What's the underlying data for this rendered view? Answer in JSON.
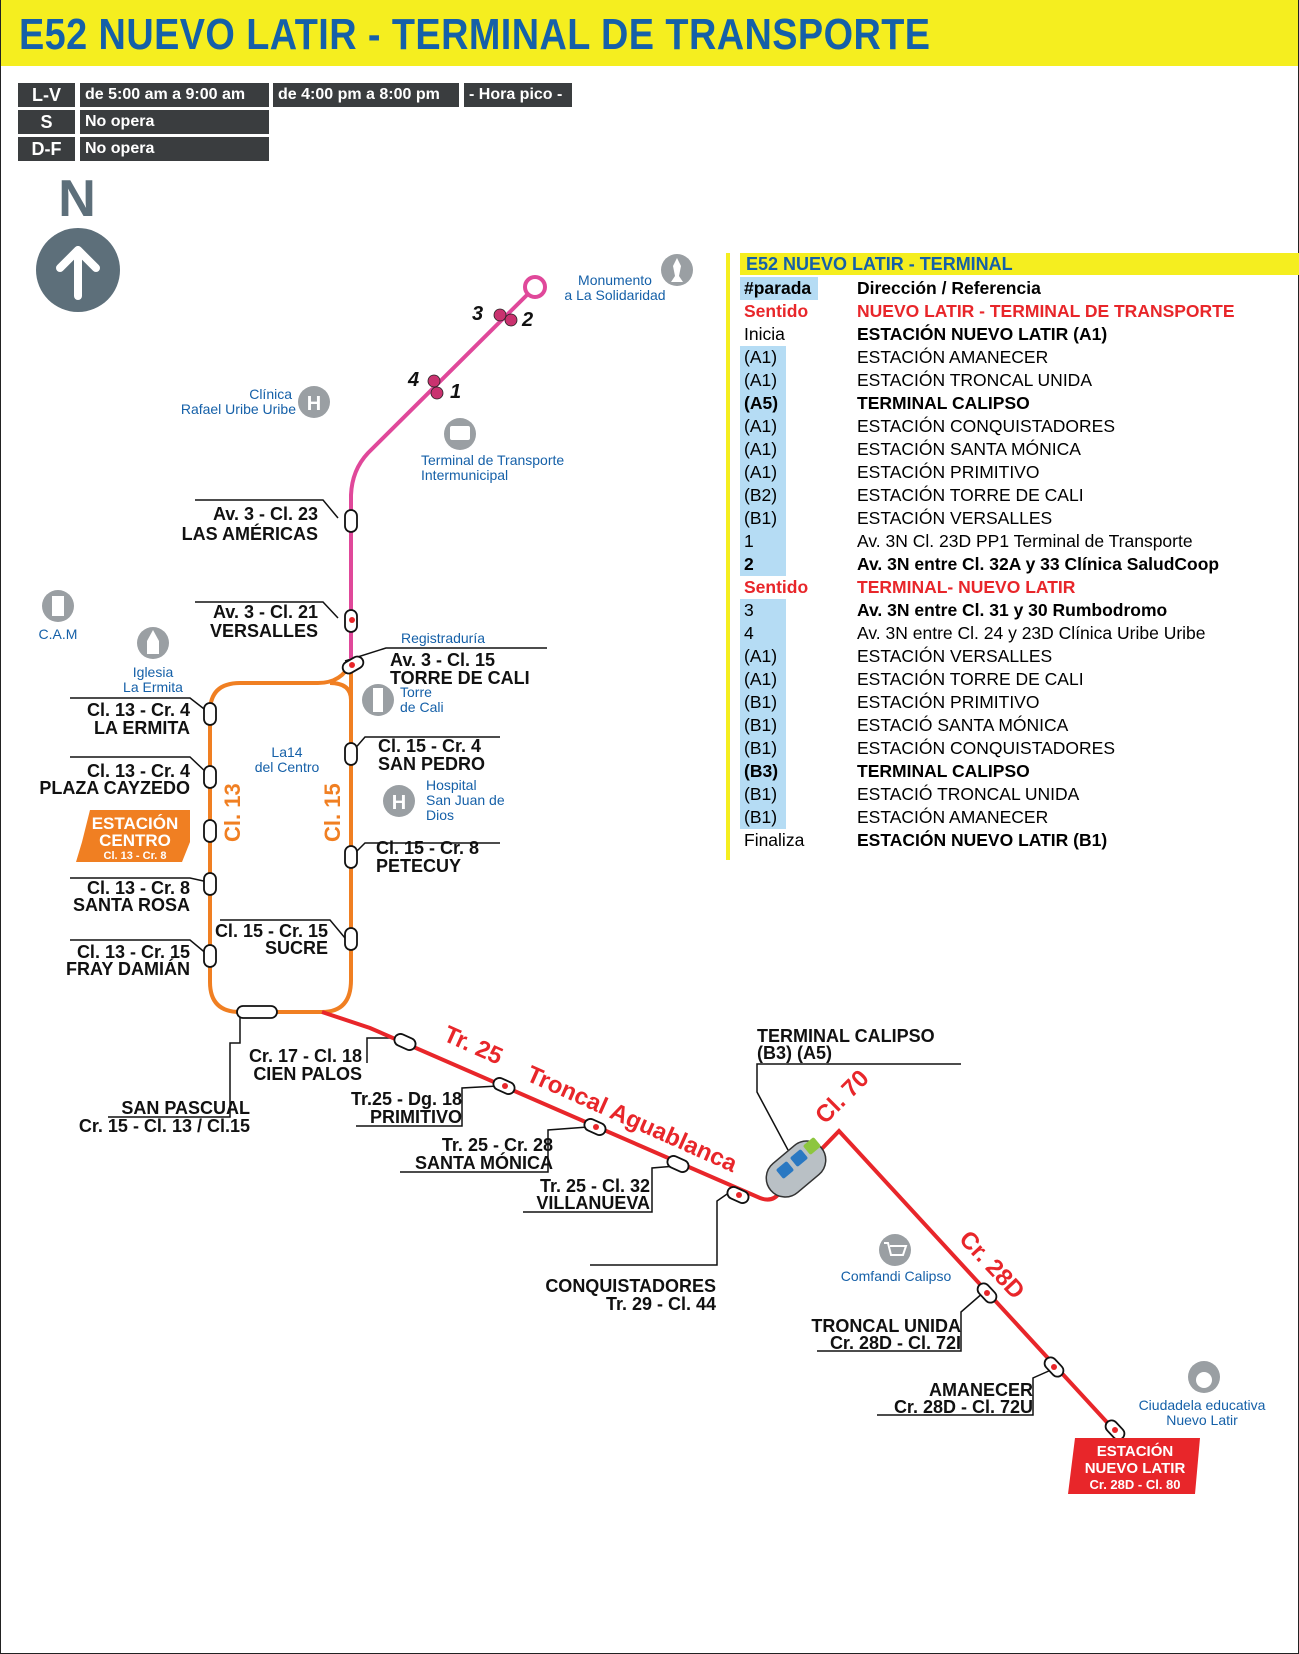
{
  "header": {
    "title": "E52 NUEVO LATIR - TERMINAL DE TRANSPORTE"
  },
  "schedule": {
    "rows": [
      {
        "day": "L-V",
        "slots": [
          "de 5:00 am a 9:00 am",
          "de 4:00 pm a 8:00 pm",
          "- Hora pico -"
        ]
      },
      {
        "day": "S",
        "slots": [
          "No opera"
        ]
      },
      {
        "day": "D-F",
        "slots": [
          "No opera"
        ]
      }
    ]
  },
  "compass": {
    "label": "N",
    "icon": "north-arrow-icon"
  },
  "legend": {
    "title": "E52 NUEVO LATIR - TERMINAL",
    "header_code": "#parada",
    "header_desc": "Dirección / Referencia",
    "rows": [
      {
        "code": "Sentido",
        "desc": "NUEVO LATIR - TERMINAL DE TRANSPORTE",
        "style": "sentido"
      },
      {
        "code": "Inicia",
        "desc": "ESTACIÓN NUEVO LATIR (A1)",
        "style": "inicia"
      },
      {
        "code": "(A1)",
        "desc": "ESTACIÓN AMANECER",
        "style": "hl"
      },
      {
        "code": "(A1)",
        "desc": "ESTACIÓN TRONCAL UNIDA",
        "style": "hl"
      },
      {
        "code": "(A5)",
        "desc": "TERMINAL CALIPSO",
        "style": "hlbold"
      },
      {
        "code": "(A1)",
        "desc": "ESTACIÓN CONQUISTADORES",
        "style": "hl"
      },
      {
        "code": "(A1)",
        "desc": "ESTACIÓN SANTA MÓNICA",
        "style": "hl"
      },
      {
        "code": "(A1)",
        "desc": "ESTACIÓN PRIMITIVO",
        "style": "hl"
      },
      {
        "code": "(B2)",
        "desc": "ESTACIÓN TORRE DE CALI",
        "style": "hl"
      },
      {
        "code": "(B1)",
        "desc": "ESTACIÓN VERSALLES",
        "style": "hl"
      },
      {
        "code": "1",
        "desc": "Av. 3N  Cl. 23D PP1 Terminal de Transporte",
        "style": "hl"
      },
      {
        "code": "2",
        "desc": "Av. 3N entre Cl. 32A y 33 Clínica SaludCoop",
        "style": "hlbold"
      },
      {
        "code": "Sentido",
        "desc": "TERMINAL- NUEVO LATIR",
        "style": "sentido"
      },
      {
        "code": "3",
        "desc": "Av. 3N entre Cl. 31 y 30 Rumbodromo",
        "style": "hlbolddesc"
      },
      {
        "code": "4",
        "desc": "Av. 3N entre Cl. 24 y 23D Clínica Uribe Uribe",
        "style": "hl"
      },
      {
        "code": "(A1)",
        "desc": "ESTACIÓN VERSALLES",
        "style": "hl"
      },
      {
        "code": "(A1)",
        "desc": "ESTACIÓN TORRE DE CALI",
        "style": "hl"
      },
      {
        "code": "(B1)",
        "desc": "ESTACIÓN PRIMITIVO",
        "style": "hl"
      },
      {
        "code": "(B1)",
        "desc": "ESTACIÓ SANTA MÓNICA",
        "style": "hl"
      },
      {
        "code": "(B1)",
        "desc": "ESTACIÓN CONQUISTADORES",
        "style": "hl"
      },
      {
        "code": "(B3)",
        "desc": "TERMINAL CALIPSO",
        "style": "hlbold"
      },
      {
        "code": "(B1)",
        "desc": "ESTACIÓ TRONCAL UNIDA",
        "style": "hl"
      },
      {
        "code": "(B1)",
        "desc": "ESTACIÓN AMANECER",
        "style": "hl"
      },
      {
        "code": "Finaliza",
        "desc": "ESTACIÓN NUEVO LATIR (B1)",
        "style": "inicia"
      }
    ]
  },
  "map": {
    "street_labels": {
      "cl13": "Cl. 13",
      "cl15": "Cl. 15",
      "tr25": "Tr. 25",
      "troncal": "Troncal Aguablanca",
      "cl70": "Cl. 70",
      "cr28d": "Cr. 28D"
    },
    "pink_stops": {
      "s1": "1",
      "s2": "2",
      "s3": "3",
      "s4": "4"
    },
    "stops": {
      "americas": [
        "Av. 3 - Cl. 23",
        "LAS AMÉRICAS"
      ],
      "versalles": [
        "Av. 3 - Cl. 21",
        "VERSALLES"
      ],
      "torre": [
        "Av. 3 - Cl. 15",
        "TORRE DE CALI"
      ],
      "ermita": [
        "Cl. 13 - Cr. 4",
        "LA ERMITA"
      ],
      "cayzedo": [
        "Cl. 13 - Cr. 4",
        "PLAZA CAYZEDO"
      ],
      "santarosa": [
        "Cl. 13 - Cr. 8",
        "SANTA ROSA"
      ],
      "frayd": [
        "Cl. 13 - Cr. 15",
        "FRAY DAMIÁN"
      ],
      "sanpedro": [
        "Cl. 15 - Cr. 4",
        "SAN PEDRO"
      ],
      "petecuy": [
        "Cl. 15 - Cr. 8",
        "PETECUY"
      ],
      "sucre": [
        "Cl. 15 - Cr. 15",
        "SUCRE"
      ],
      "cienpalos": [
        "Cr. 17 - Cl. 18",
        "CIEN PALOS"
      ],
      "sanpascual": [
        "SAN PASCUAL",
        "Cr. 15 - Cl. 13 / Cl.15"
      ],
      "primitivo": [
        "Tr.25 - Dg. 18",
        "PRIMITIVO"
      ],
      "santamonica": [
        "Tr. 25 - Cr. 28",
        "SANTA MÓNICA"
      ],
      "villanueva": [
        "Tr. 25 - Cl. 32",
        "VILLANUEVA"
      ],
      "conquistadores": [
        "CONQUISTADORES",
        "Tr. 29 - Cl. 44"
      ],
      "calipso": [
        "TERMINAL CALIPSO",
        "(B3) (A5)"
      ],
      "troncalunida": [
        "TRONCAL UNIDA",
        "Cr. 28D - Cl. 72I"
      ],
      "amanecer": [
        "AMANECER",
        "Cr. 28D - Cl. 72U"
      ]
    },
    "stations": {
      "centro": [
        "ESTACIÓN",
        "CENTRO",
        "Cl. 13 - Cr. 8"
      ],
      "nuevolatir": [
        "ESTACIÓN",
        "NUEVO LATIR",
        "Cr. 28D - Cl. 80"
      ]
    },
    "pois": {
      "monumento": [
        "Monumento",
        "a La Solidaridad"
      ],
      "clinica": [
        "Clínica",
        "Rafael Uribe Uribe"
      ],
      "terminal": [
        "Terminal de Transporte",
        "Intermunicipal"
      ],
      "cam": [
        "C.A.M"
      ],
      "iglesia": [
        "Iglesia",
        "La Ermita"
      ],
      "registraduria": [
        "Registraduría"
      ],
      "torrecali": [
        "Torre",
        "de Cali"
      ],
      "la14": [
        "La14",
        "del Centro"
      ],
      "hospital": [
        "Hospital",
        "San Juan de",
        "Dios"
      ],
      "comfandi": [
        "Comfandi Calipso"
      ],
      "ciudadela": [
        "Ciudadela educativa",
        "Nuevo Latir"
      ]
    }
  },
  "colors": {
    "yellow": "#f5ee1f",
    "blue": "#1560a8",
    "pink": "#e0489a",
    "orange": "#f07f22",
    "red": "#e8262a",
    "dark": "#3a3d3f",
    "highlight": "#b5dcf4"
  }
}
